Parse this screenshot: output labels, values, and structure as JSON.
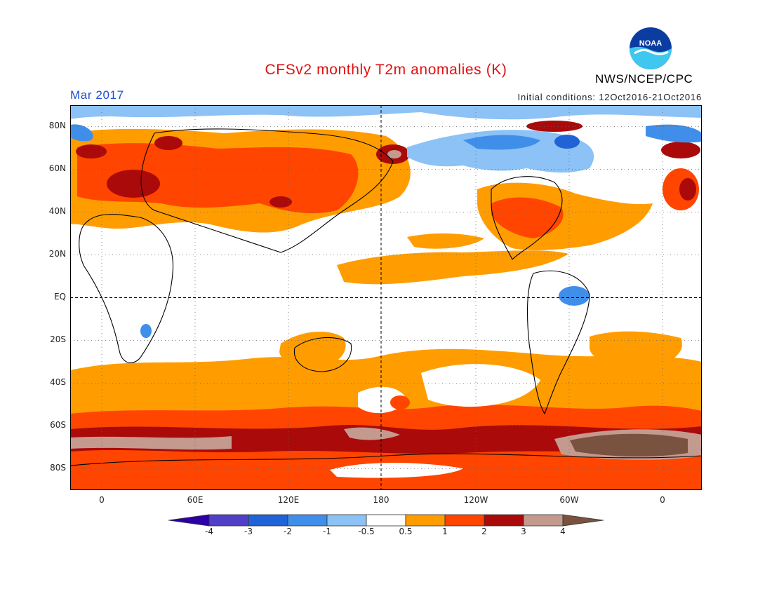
{
  "title": "CFSv2 monthly T2m anomalies (K)",
  "valid_month": "Mar 2017",
  "initial_conditions": "Initial conditions: 12Oct2016-21Oct2016",
  "agency": "NWS/NCEP/CPC",
  "logo_text": "NOAA",
  "lat_labels": [
    "80N",
    "60N",
    "40N",
    "20N",
    "EQ",
    "20S",
    "40S",
    "60S",
    "80S"
  ],
  "lon_labels": [
    "0",
    "60E",
    "120E",
    "180",
    "120W",
    "60W",
    "0"
  ],
  "colorbar": {
    "tick_labels": [
      "-4",
      "-3",
      "-2",
      "-1",
      "-0.5",
      "0.5",
      "1",
      "2",
      "3",
      "4"
    ],
    "colors": [
      "#2b00a8",
      "#5040c8",
      "#1f63d6",
      "#3f8fea",
      "#8cc2f5",
      "#ffffff",
      "#ff9d00",
      "#ff4500",
      "#aa0a0a",
      "#c49a8e",
      "#7a5240"
    ]
  }
}
